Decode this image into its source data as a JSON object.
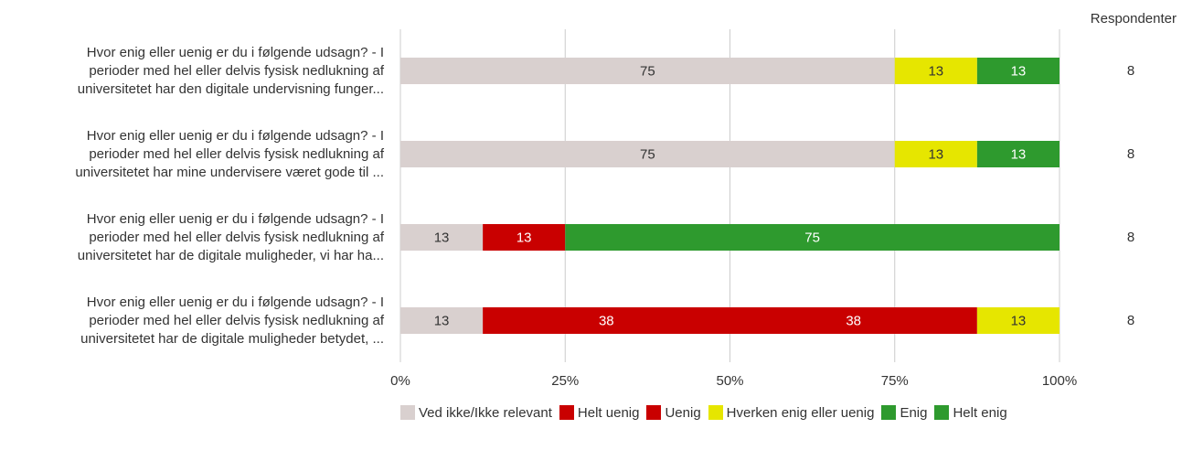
{
  "chart_data": {
    "type": "bar",
    "stacked": true,
    "orientation": "horizontal",
    "categories": [
      "Hvor enig eller uenig er du i følgende udsagn? - I perioder med hel eller delvis fysisk nedlukning af universitetet har den digitale undervisning funger...",
      "Hvor enig eller uenig er du i følgende udsagn? - I perioder med hel eller delvis fysisk nedlukning af universitetet har mine undervisere været gode til ...",
      "Hvor enig eller uenig er du i følgende udsagn? - I perioder med hel eller delvis fysisk nedlukning af universitetet har de digitale muligheder, vi har ha...",
      "Hvor enig eller uenig er du i følgende udsagn? - I perioder med hel eller delvis fysisk nedlukning af universitetet har de digitale muligheder betydet, ..."
    ],
    "category_lines": [
      [
        "Hvor enig eller uenig er du i følgende udsagn? - I",
        "perioder med hel eller delvis fysisk nedlukning af",
        "universitetet har den digitale undervisning funger..."
      ],
      [
        "Hvor enig eller uenig er du i følgende udsagn? - I",
        "perioder med hel eller delvis fysisk nedlukning af",
        "universitetet har mine undervisere været gode til ..."
      ],
      [
        "Hvor enig eller uenig er du i følgende udsagn? - I",
        "perioder med hel eller delvis fysisk nedlukning af",
        "universitetet har de digitale muligheder, vi har ha..."
      ],
      [
        "Hvor enig eller uenig er du i følgende udsagn? - I",
        "perioder med hel eller delvis fysisk nedlukning af",
        "universitetet har de digitale muligheder betydet, ..."
      ]
    ],
    "series": [
      {
        "name": "Ved ikke/Ikke relevant",
        "color": "#d9d0cf",
        "label_color": "#333333",
        "values": [
          75,
          75,
          12.5,
          12.5
        ],
        "labels": [
          "75",
          "75",
          "13",
          "13"
        ]
      },
      {
        "name": "Helt uenig",
        "color": "#c90000",
        "label_color": "#ffffff",
        "values": [
          0,
          0,
          12.5,
          37.5
        ],
        "labels": [
          "",
          "",
          "13",
          "38"
        ]
      },
      {
        "name": "Uenig",
        "color": "#c90000",
        "label_color": "#ffffff",
        "values": [
          0,
          0,
          0,
          37.5
        ],
        "labels": [
          "",
          "",
          "",
          "38"
        ]
      },
      {
        "name": "Hverken enig eller uenig",
        "color": "#e6e600",
        "label_color": "#333333",
        "values": [
          12.5,
          12.5,
          0,
          12.5
        ],
        "labels": [
          "13",
          "13",
          "",
          "13"
        ]
      },
      {
        "name": "Enig",
        "color": "#2e9a2e",
        "label_color": "#ffffff",
        "values": [
          12.5,
          12.5,
          75,
          0
        ],
        "labels": [
          "13",
          "13",
          "75",
          ""
        ]
      },
      {
        "name": "Helt enig",
        "color": "#2e9a2e",
        "label_color": "#ffffff",
        "values": [
          0,
          0,
          0,
          0
        ],
        "labels": [
          "",
          "",
          "",
          ""
        ]
      }
    ],
    "xlim": [
      0,
      100
    ],
    "x_ticks": [
      "0%",
      "25%",
      "50%",
      "75%",
      "100%"
    ],
    "grid": true,
    "legend_position": "bottom",
    "respondents_header": "Respondenter",
    "respondents": [
      "8",
      "8",
      "8",
      "8"
    ]
  }
}
